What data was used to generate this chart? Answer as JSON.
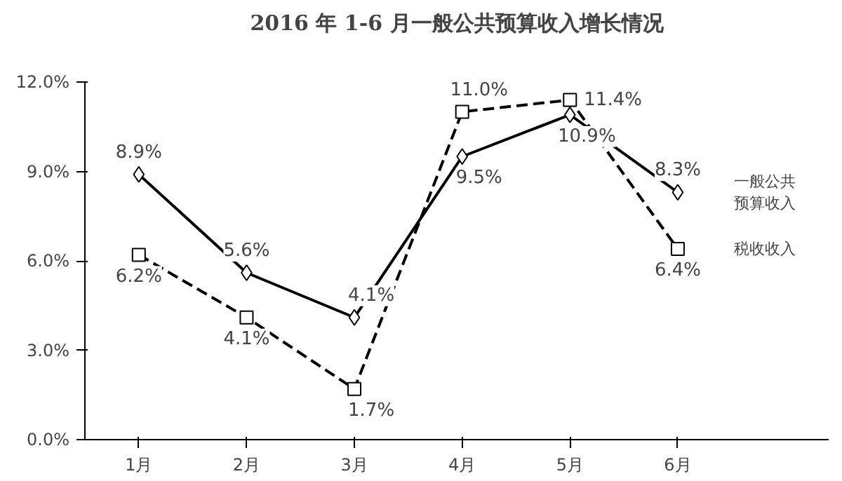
{
  "chart_data": {
    "type": "line",
    "title": "2016 年 1-6 月一般公共预算收入增长情况",
    "categories": [
      "1月",
      "2月",
      "3月",
      "4月",
      "5月",
      "6月"
    ],
    "ylim": [
      0,
      12
    ],
    "yticks": [
      {
        "value": 0,
        "label": "0.0%"
      },
      {
        "value": 3,
        "label": "3.0%"
      },
      {
        "value": 6,
        "label": "6.0%"
      },
      {
        "value": 9,
        "label": "9.0%"
      },
      {
        "value": 12,
        "label": "12.0%"
      }
    ],
    "grid": false,
    "legend": false,
    "series": [
      {
        "name": "一般公共预算收入",
        "color": "#000000",
        "marker": "diamond",
        "line_style": "solid",
        "values": [
          8.9,
          5.6,
          4.1,
          9.5,
          10.9,
          8.3
        ],
        "value_labels": [
          "8.9%",
          "5.6%",
          "4.1%",
          "9.5%",
          "10.9%",
          "8.3%"
        ]
      },
      {
        "name": "税收收入",
        "color": "#000000",
        "marker": "square",
        "line_style": "dashed",
        "values": [
          6.2,
          4.1,
          1.7,
          11.0,
          11.4,
          6.4
        ],
        "value_labels": [
          "6.2%",
          "4.1%",
          "1.7%",
          "11.0%",
          "11.4%",
          "6.4%"
        ]
      }
    ]
  }
}
